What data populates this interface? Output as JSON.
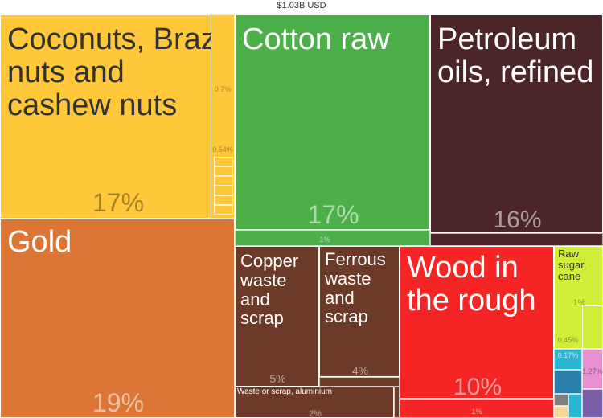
{
  "chart_data": {
    "type": "treemap",
    "title": "$1.03B USD",
    "tiles": [
      {
        "name": "Coconuts, Brazil nuts and cashew nuts",
        "display": "Coconuts, Brazi\nnuts and\ncashew nuts",
        "share": "17%",
        "color": "#FFC83A",
        "text_color": "#333333"
      },
      {
        "name": "Gold",
        "display": "Gold",
        "share": "19%",
        "color": "#DD7535",
        "text_color": "#FFFFFF"
      },
      {
        "name": "Cotton raw",
        "display": "Cotton raw",
        "share": "17%",
        "color": "#4CAF4A",
        "text_color": "#FFFFFF"
      },
      {
        "name": "Petroleum oils, refined",
        "display": "Petroleum\noils, refined",
        "share": "16%",
        "color": "#4B2527",
        "text_color": "#FFFFFF"
      },
      {
        "name": "Copper waste and scrap",
        "display": "Copper\nwaste\nand\nscrap",
        "share": "5%",
        "color": "#6C3A28",
        "text_color": "#FFFFFF"
      },
      {
        "name": "Ferrous waste and scrap",
        "display": "Ferrous\nwaste\nand scrap",
        "share": "4%",
        "color": "#6C3A28",
        "text_color": "#FFFFFF"
      },
      {
        "name": "Waste or scrap, aluminium",
        "display": "Waste or scrap, aluminium",
        "share": "2%",
        "color": "#6C3A28",
        "text_color": "#FFFFFF"
      },
      {
        "name": "Wood in the rough",
        "display": "Wood in\nthe rough",
        "share": "10%",
        "color": "#F52525",
        "text_color": "#FFFFFF"
      },
      {
        "name": "Raw sugar, cane",
        "display": "Raw\nsugar,\ncane",
        "share": "1%",
        "color": "#CFEE3A",
        "text_color": "#333333"
      }
    ],
    "small_labels": [
      "0.7%",
      "0.54%",
      "1%",
      "1%",
      "0.45%",
      "0.17%",
      "1.27%"
    ]
  }
}
